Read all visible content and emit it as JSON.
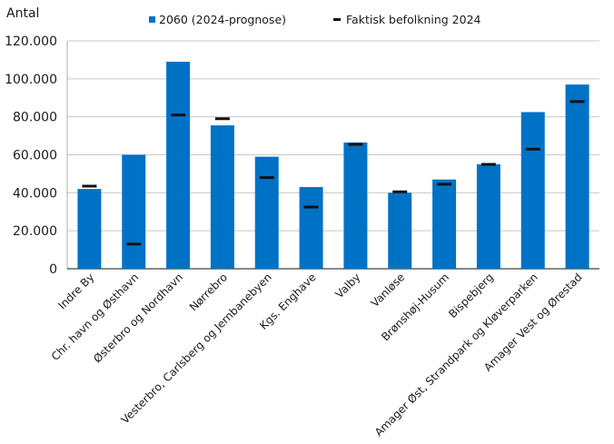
{
  "chart_data": {
    "type": "bar",
    "ylabel": "Antal",
    "ylim": [
      0,
      120000
    ],
    "yticks": [
      0,
      20000,
      40000,
      60000,
      80000,
      100000,
      120000
    ],
    "ytick_labels": [
      "0",
      "20.000",
      "40.000",
      "60.000",
      "80.000",
      "100.000",
      "120.000"
    ],
    "grid": true,
    "legend_position": "top",
    "categories": [
      "Indre By",
      "Chr. havn og Østhavn",
      "Østerbro og Nordhavn",
      "Nørrebro",
      "Vesterbro, Carlsberg og Jernbanebyen",
      "Kgs. Enghave",
      "Valby",
      "Vanløse",
      "Brønshøj-Husum",
      "Bispebjerg",
      "Amager Øst, Strandpark og Kløverparken",
      "Amager Vest og Ørestad"
    ],
    "series": [
      {
        "name": "2060 (2024-prognose)",
        "type": "bar",
        "color": "#0072c6",
        "values": [
          42000,
          60000,
          109000,
          75500,
          59000,
          43000,
          66500,
          40000,
          47000,
          55000,
          82500,
          97000
        ]
      },
      {
        "name": "Faktisk befolkning 2024",
        "type": "marker",
        "color": "#111111",
        "values": [
          43500,
          13000,
          81000,
          79000,
          48000,
          32500,
          65500,
          40500,
          44500,
          55000,
          63000,
          88000
        ]
      }
    ]
  }
}
